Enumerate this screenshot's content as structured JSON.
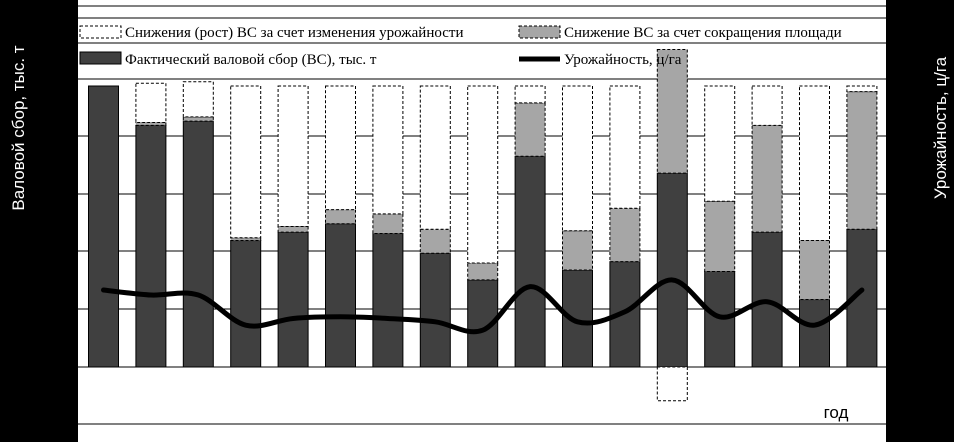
{
  "chart_data": {
    "type": "bar",
    "stacked": true,
    "categories": [
      "",
      "",
      "",
      "",
      "",
      "",
      "",
      "",
      "",
      "",
      "",
      "",
      "",
      "",
      "",
      "",
      "",
      ""
    ],
    "series": [
      {
        "name": "Фактический валовой сбор (ВС), тыс. т",
        "color": "#404040",
        "values": [
          100,
          86,
          87.5,
          45,
          48,
          51,
          47.5,
          40.5,
          31,
          75,
          34.5,
          37.5,
          69,
          34,
          48,
          24,
          49,
          0
        ]
      },
      {
        "name": "Снижение  ВС за счет сокращения площади",
        "color": "#a6a6a6",
        "values": [
          0,
          1,
          1.5,
          1,
          2,
          5,
          7,
          8.5,
          6,
          19,
          14,
          19,
          44,
          25,
          38,
          21,
          49,
          0
        ]
      },
      {
        "name": "Снижения  (рост) ВС за счет изменения урожайности",
        "color": "#ffffff",
        "values": [
          0,
          14,
          12.5,
          54,
          50,
          44,
          45.5,
          51,
          63,
          6,
          51.5,
          43.5,
          -12,
          41,
          14,
          55,
          2,
          0
        ]
      },
      {
        "name": "Урожайность, ц/га",
        "type": "line",
        "axis": "right",
        "color": "#000000",
        "values": [
          19,
          17.5,
          17.5,
          8.5,
          10.5,
          11,
          10.5,
          9.5,
          7,
          20,
          9.5,
          12.5,
          22,
          11,
          15.5,
          8.5,
          19,
          0
        ]
      }
    ],
    "ylim": [
      -12,
      102
    ],
    "y2lim": [
      -21,
      131
    ],
    "xlabel": "год",
    "ylabel": "Валовой сбор, тыс. т",
    "y2label": "Урожайность, ц/га",
    "grid": true,
    "legend_position": "top"
  }
}
